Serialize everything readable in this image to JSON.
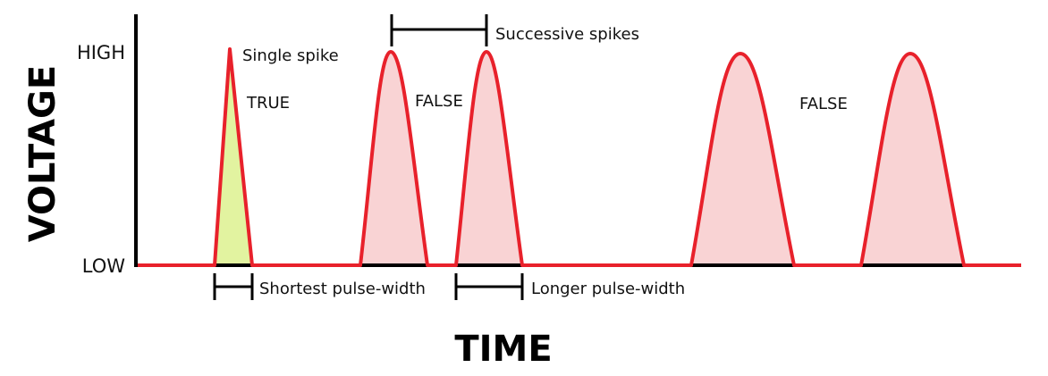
{
  "axes": {
    "y_title": "VOLTAGE",
    "x_title": "TIME",
    "y_high": "HIGH",
    "y_low": "LOW"
  },
  "annotations": {
    "single_spike": "Single spike",
    "successive_spikes": "Successive spikes",
    "true_label": "TRUE",
    "false_label_1": "FALSE",
    "false_label_2": "FALSE",
    "shortest_pulse": "Shortest pulse-width",
    "longer_pulse": "Longer pulse-width"
  },
  "colors": {
    "signal": "#e8212b",
    "true_fill": "#e2f3a0",
    "false_fill": "#f9d3d4",
    "axis": "#000000"
  }
}
